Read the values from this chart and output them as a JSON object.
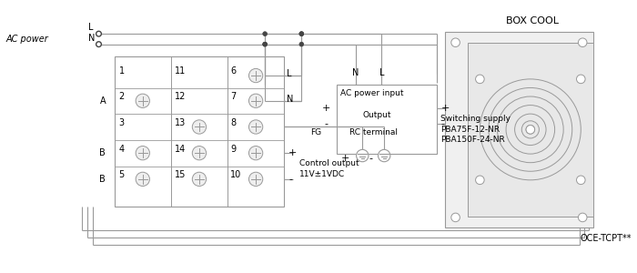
{
  "bg_color": "#ffffff",
  "lc": "#999999",
  "tc": "#000000",
  "dc": "#444444",
  "fig_width": 7.0,
  "fig_height": 3.0,
  "ac_power": "AC power",
  "box_cool": "BOX COOL",
  "oce": "OCE-TCPT**",
  "sw_line1": "Switching supply",
  "sw_line2": "PBA75F-12-NR",
  "sw_line3": "PBA150F-24-NR",
  "ctrl_line1": "Control output",
  "ctrl_line2": "11V±1VDC",
  "ac_input": "AC power input",
  "output_lbl": "Output",
  "rc_term": "RC terminal",
  "fg_lbl": "FG"
}
